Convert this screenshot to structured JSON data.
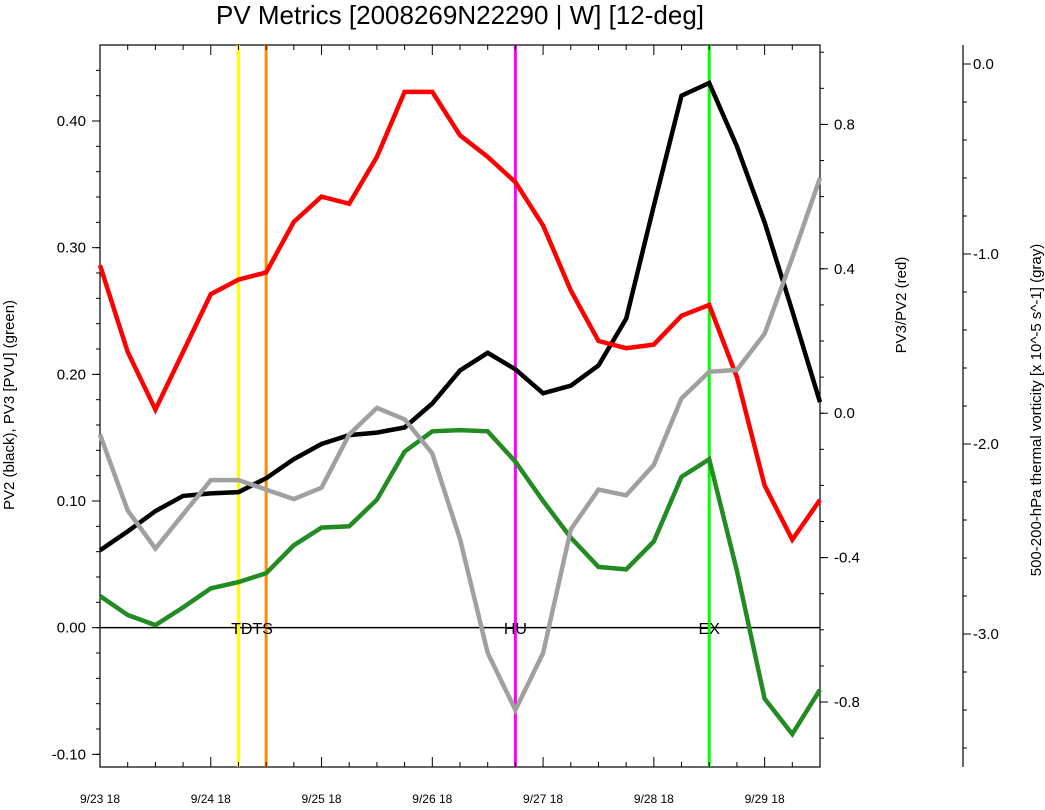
{
  "chart_data": {
    "type": "line",
    "title": "PV Metrics [2008269N22290 | W] [12-deg]",
    "x": [
      0,
      0.25,
      0.5,
      0.75,
      1,
      1.25,
      1.5,
      1.75,
      2,
      2.25,
      2.5,
      2.75,
      3,
      3.25,
      3.5,
      3.75,
      4,
      4.25,
      4.5,
      4.75,
      5,
      5.25,
      5.5,
      5.75,
      6,
      6.25,
      6.5
    ],
    "x_tick_labels": [
      "9/23 18",
      "9/24 18",
      "9/25 18",
      "9/26 18",
      "9/27 18",
      "9/28 18",
      "9/29 18"
    ],
    "x_tick_values": [
      0,
      1,
      2,
      3,
      4,
      5,
      6
    ],
    "xlim": [
      0,
      6.5
    ],
    "axes": {
      "left": {
        "label": "PV2 (black), PV3 [PVU] (green)",
        "ylim": [
          -0.11,
          0.46
        ],
        "ticks": [
          -0.1,
          0.0,
          0.1,
          0.2,
          0.3,
          0.4
        ],
        "tick_labels": [
          "-0.10",
          "0.00",
          "0.10",
          "0.20",
          "0.30",
          "0.40"
        ]
      },
      "right": {
        "label": "PV3/PV2 (red)",
        "ylim": [
          -0.98,
          1.02
        ],
        "ticks": [
          -0.8,
          -0.4,
          0.0,
          0.4,
          0.8
        ],
        "tick_labels": [
          "-0.8",
          "-0.4",
          "0.0",
          "0.4",
          "0.8"
        ]
      },
      "far_right": {
        "label": "500-200-hPa thermal vorticity [x 10^-5 s^-1] (gray)",
        "ylim": [
          -3.7,
          0.1
        ],
        "ticks": [
          -3.0,
          -2.0,
          -1.0,
          0.0
        ],
        "tick_labels": [
          "-3.0",
          "-2.0",
          "-1.0",
          "0.0"
        ]
      }
    },
    "series": [
      {
        "color": "#000000",
        "axis": "left",
        "values": [
          0.061,
          0.076,
          0.092,
          0.104,
          0.106,
          0.107,
          0.118,
          0.133,
          0.145,
          0.152,
          0.154,
          0.158,
          0.177,
          0.203,
          0.217,
          0.204,
          0.185,
          0.191,
          0.207,
          0.244,
          0.333,
          0.42,
          0.43,
          0.38,
          0.32,
          0.25,
          0.178
        ]
      },
      {
        "color": "#228b22",
        "axis": "left",
        "values": [
          0.025,
          0.01,
          0.002,
          0.016,
          0.031,
          0.036,
          0.043,
          0.065,
          0.079,
          0.08,
          0.101,
          0.139,
          0.155,
          0.156,
          0.155,
          0.131,
          0.1,
          0.071,
          0.048,
          0.046,
          0.068,
          0.119,
          0.133,
          0.045,
          -0.056,
          -0.084,
          -0.049
        ]
      },
      {
        "color": "#ff0000",
        "axis": "right",
        "values": [
          0.41,
          0.17,
          0.01,
          0.17,
          0.33,
          0.37,
          0.39,
          0.53,
          0.6,
          0.58,
          0.71,
          0.89,
          0.89,
          0.77,
          0.71,
          0.64,
          0.52,
          0.34,
          0.2,
          0.18,
          0.19,
          0.27,
          0.3,
          0.1,
          -0.2,
          -0.35,
          -0.24
        ]
      },
      {
        "color": "#a0a0a0",
        "axis": "far_right",
        "values": [
          -1.95,
          -2.35,
          -2.55,
          -2.37,
          -2.19,
          -2.19,
          -2.24,
          -2.29,
          -2.23,
          -1.95,
          -1.81,
          -1.87,
          -2.05,
          -2.5,
          -3.1,
          -3.4,
          -3.1,
          -2.45,
          -2.24,
          -2.27,
          -2.11,
          -1.76,
          -1.62,
          -1.61,
          -1.42,
          -1.02,
          -0.6
        ]
      }
    ],
    "events": [
      {
        "label": "",
        "x": 1.25,
        "color": "#ffff00"
      },
      {
        "label": "",
        "x": 1.5,
        "color": "#ff8c00"
      },
      {
        "label": "HU",
        "x": 3.75,
        "color": "#ff00ff"
      },
      {
        "label": "EX",
        "x": 5.5,
        "color": "#00ff00"
      }
    ],
    "event_text_TDTS": "TDTS",
    "grid": false,
    "legend": "none"
  }
}
